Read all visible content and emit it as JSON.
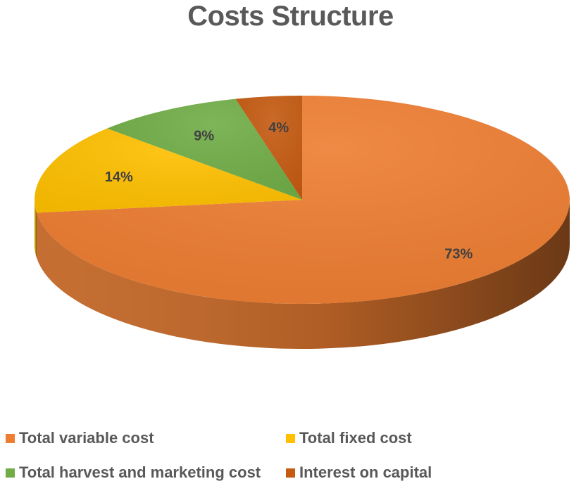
{
  "chart_data": {
    "type": "pie",
    "title": "Costs Structure",
    "series": [
      {
        "name": "Total variable cost",
        "value": 73,
        "label": "73%",
        "color": "#ED7D31"
      },
      {
        "name": "Total fixed cost",
        "value": 14,
        "label": "14%",
        "color": "#FFC000"
      },
      {
        "name": "Total harvest and marketing cost",
        "value": 9,
        "label": "9%",
        "color": "#70AD47"
      },
      {
        "name": "Interest on capital",
        "value": 4,
        "label": "4%",
        "color": "#C55A11"
      }
    ],
    "legend_position": "bottom",
    "style": "3d"
  }
}
